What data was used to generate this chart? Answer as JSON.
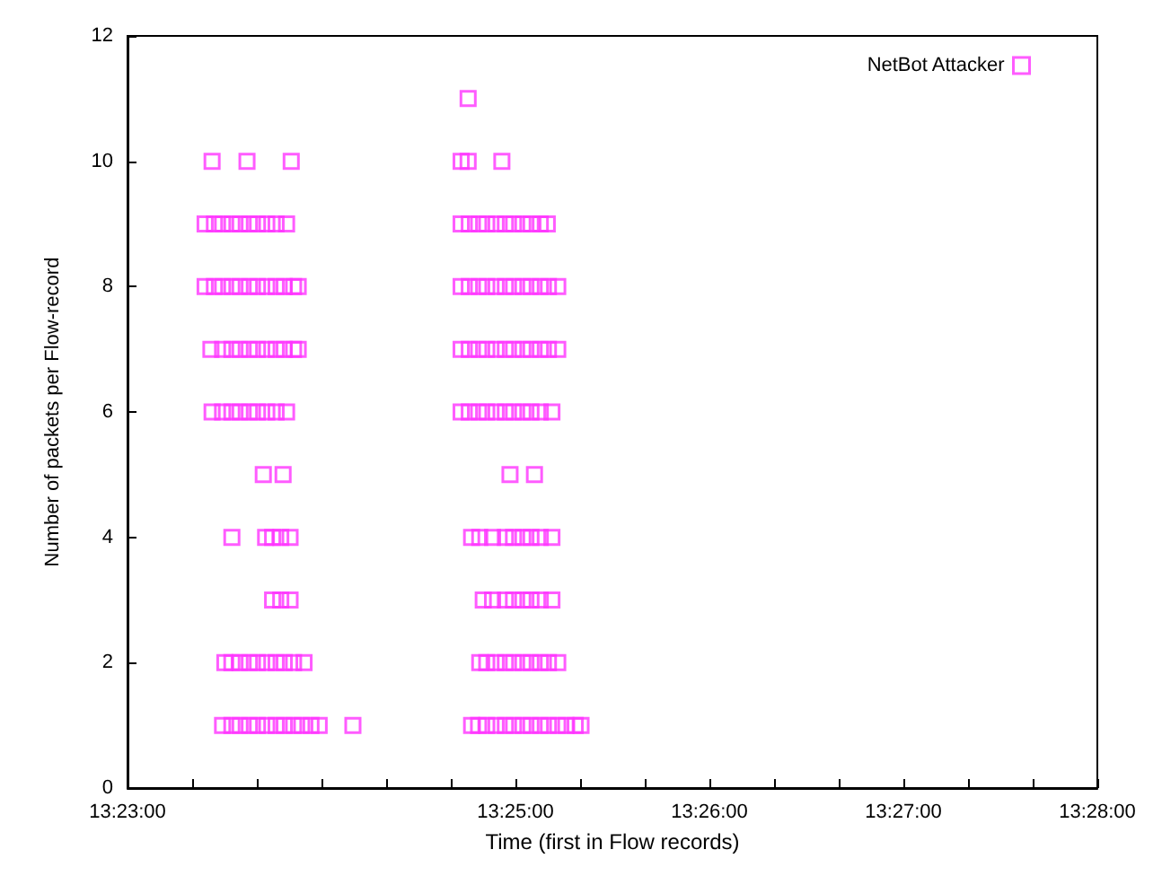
{
  "chart_data": {
    "type": "scatter",
    "xlabel": "Time (first in Flow records)",
    "ylabel": "Number of packets per Flow-record",
    "xlim": [
      13.383333,
      13.466667
    ],
    "ylim": [
      0,
      12
    ],
    "xticks": [
      {
        "value": 13.383333,
        "label": "13:23:00"
      },
      {
        "value": 13.388889,
        "label": null
      },
      {
        "value": 13.394444,
        "label": null
      },
      {
        "value": 13.4,
        "label": null
      },
      {
        "value": 13.405556,
        "label": null
      },
      {
        "value": 13.411111,
        "label": null
      },
      {
        "value": 13.416667,
        "label": "13:25:00"
      },
      {
        "value": 13.422222,
        "label": null
      },
      {
        "value": 13.427778,
        "label": null
      },
      {
        "value": 13.433333,
        "label": "13:26:00"
      },
      {
        "value": 13.438889,
        "label": null
      },
      {
        "value": 13.444444,
        "label": null
      },
      {
        "value": 13.45,
        "label": "13:27:00"
      },
      {
        "value": 13.455556,
        "label": null
      },
      {
        "value": 13.461111,
        "label": null
      },
      {
        "value": 13.466667,
        "label": "13:28:00"
      }
    ],
    "yticks": [
      0,
      2,
      4,
      6,
      8,
      10,
      12
    ],
    "grid": false,
    "legend": "top right",
    "marker": "square",
    "series": [
      {
        "name": "NetBot Attacker",
        "color": "#ff33ff",
        "x": [
          13.4126,
          13.3906,
          13.3936,
          13.3974,
          13.412,
          13.4126,
          13.4155,
          13.39,
          13.3908,
          13.3915,
          13.3923,
          13.393,
          13.3938,
          13.3945,
          13.3953,
          13.3961,
          13.397,
          13.412,
          13.4127,
          13.4135,
          13.4142,
          13.415,
          13.4158,
          13.4165,
          13.4173,
          13.418,
          13.4188,
          13.4194,
          13.39,
          13.3908,
          13.3915,
          13.3923,
          13.393,
          13.3938,
          13.3945,
          13.3953,
          13.3961,
          13.3968,
          13.3976,
          13.398,
          13.412,
          13.4127,
          13.4135,
          13.4142,
          13.415,
          13.4158,
          13.4165,
          13.4173,
          13.418,
          13.4188,
          13.4195,
          13.4203,
          13.3905,
          13.3915,
          13.3923,
          13.393,
          13.3938,
          13.3945,
          13.3953,
          13.3961,
          13.3968,
          13.3976,
          13.398,
          13.412,
          13.4127,
          13.4135,
          13.4142,
          13.415,
          13.4158,
          13.4165,
          13.4173,
          13.418,
          13.4188,
          13.4195,
          13.4203,
          13.3906,
          13.3915,
          13.3923,
          13.393,
          13.3938,
          13.3945,
          13.3953,
          13.3961,
          13.397,
          13.412,
          13.4127,
          13.4135,
          13.4142,
          13.415,
          13.4158,
          13.4165,
          13.4173,
          13.418,
          13.4188,
          13.4198,
          13.395,
          13.3967,
          13.4162,
          13.4183,
          13.3923,
          13.3952,
          13.3958,
          13.3965,
          13.3973,
          13.4129,
          13.4136,
          13.4147,
          13.4158,
          13.4165,
          13.4173,
          13.418,
          13.4188,
          13.4198,
          13.3958,
          13.3965,
          13.3973,
          13.4139,
          13.4147,
          13.4158,
          13.4165,
          13.4173,
          13.418,
          13.4188,
          13.4198,
          13.3917,
          13.3923,
          13.393,
          13.3938,
          13.3945,
          13.3953,
          13.3961,
          13.3968,
          13.3976,
          13.3985,
          13.4136,
          13.4142,
          13.415,
          13.4158,
          13.4165,
          13.4173,
          13.418,
          13.4188,
          13.4195,
          13.4203,
          13.3915,
          13.3923,
          13.393,
          13.3938,
          13.3945,
          13.3953,
          13.3961,
          13.3968,
          13.3976,
          13.3983,
          13.3991,
          13.3998,
          13.4027,
          13.4129,
          13.4135,
          13.4142,
          13.415,
          13.4158,
          13.4165,
          13.4173,
          13.418,
          13.4188,
          13.4195,
          13.4203,
          13.421,
          13.4218,
          13.4223
        ],
        "values": [
          11,
          10,
          10,
          10,
          10,
          10,
          10,
          9,
          9,
          9,
          9,
          9,
          9,
          9,
          9,
          9,
          9,
          9,
          9,
          9,
          9,
          9,
          9,
          9,
          9,
          9,
          9,
          9,
          8,
          8,
          8,
          8,
          8,
          8,
          8,
          8,
          8,
          8,
          8,
          8,
          8,
          8,
          8,
          8,
          8,
          8,
          8,
          8,
          8,
          8,
          8,
          8,
          7,
          7,
          7,
          7,
          7,
          7,
          7,
          7,
          7,
          7,
          7,
          7,
          7,
          7,
          7,
          7,
          7,
          7,
          7,
          7,
          7,
          7,
          7,
          6,
          6,
          6,
          6,
          6,
          6,
          6,
          6,
          6,
          6,
          6,
          6,
          6,
          6,
          6,
          6,
          6,
          6,
          6,
          6,
          5,
          5,
          5,
          5,
          4,
          4,
          4,
          4,
          4,
          4,
          4,
          4,
          4,
          4,
          4,
          4,
          4,
          4,
          3,
          3,
          3,
          3,
          3,
          3,
          3,
          3,
          3,
          3,
          3,
          2,
          2,
          2,
          2,
          2,
          2,
          2,
          2,
          2,
          2,
          2,
          2,
          2,
          2,
          2,
          2,
          2,
          2,
          2,
          2,
          1,
          1,
          1,
          1,
          1,
          1,
          1,
          1,
          1,
          1,
          1,
          1,
          1,
          1,
          1,
          1,
          1,
          1,
          1,
          1,
          1,
          1,
          1,
          1,
          1,
          1,
          1
        ]
      }
    ]
  }
}
